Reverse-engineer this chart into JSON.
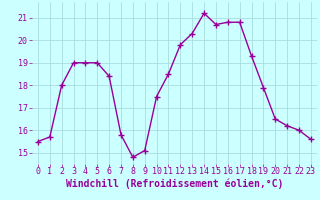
{
  "x": [
    0,
    1,
    2,
    3,
    4,
    5,
    6,
    7,
    8,
    9,
    10,
    11,
    12,
    13,
    14,
    15,
    16,
    17,
    18,
    19,
    20,
    21,
    22,
    23
  ],
  "y": [
    15.5,
    15.7,
    18.0,
    19.0,
    19.0,
    19.0,
    18.4,
    15.8,
    14.8,
    15.1,
    17.5,
    18.5,
    19.8,
    20.3,
    21.2,
    20.7,
    20.8,
    20.8,
    19.3,
    17.9,
    16.5,
    16.2,
    16.0,
    15.6
  ],
  "line_color": "#990099",
  "marker": "+",
  "marker_size": 4,
  "marker_color": "#990099",
  "bg_color": "#ccffff",
  "grid_color": "#aadddd",
  "xlabel": "Windchill (Refroidissement éolien,°C)",
  "xlabel_color": "#990099",
  "xlabel_fontsize": 7,
  "tick_label_color": "#990099",
  "tick_fontsize": 6,
  "ylim": [
    14.5,
    21.7
  ],
  "xlim": [
    -0.5,
    23.5
  ],
  "yticks": [
    15,
    16,
    17,
    18,
    19,
    20,
    21
  ],
  "xticks": [
    0,
    1,
    2,
    3,
    4,
    5,
    6,
    7,
    8,
    9,
    10,
    11,
    12,
    13,
    14,
    15,
    16,
    17,
    18,
    19,
    20,
    21,
    22,
    23
  ],
  "line_width": 1.0
}
